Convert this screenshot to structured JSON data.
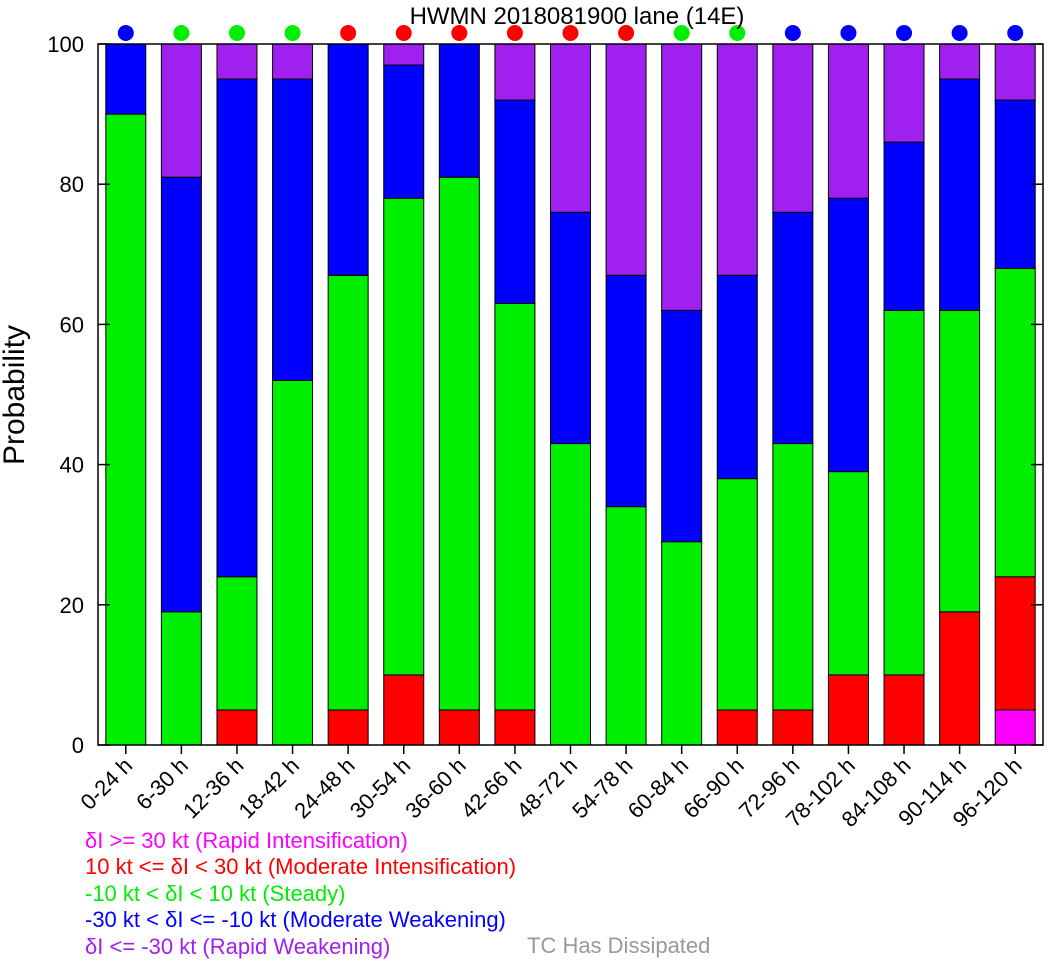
{
  "chart_data": {
    "type": "bar",
    "stacked": true,
    "title": "HWMN 2018081900 lane (14E)",
    "ylabel": "Probability",
    "xlabel": "",
    "ylim": [
      0,
      100
    ],
    "yticks": [
      "0",
      "20",
      "40",
      "60",
      "80",
      "100"
    ],
    "categories": [
      "0-24 h",
      "6-30 h",
      "12-36 h",
      "18-42 h",
      "24-48 h",
      "30-54 h",
      "36-60 h",
      "42-66 h",
      "48-72 h",
      "54-78 h",
      "60-84 h",
      "66-90 h",
      "72-96 h",
      "78-102 h",
      "84-108 h",
      "90-114 h",
      "96-120 h"
    ],
    "series": [
      {
        "name": "δI >= 30 kt (Rapid Intensification)",
        "color": "#ff00ff",
        "values": [
          0,
          0,
          0,
          0,
          0,
          0,
          0,
          0,
          0,
          0,
          0,
          0,
          0,
          0,
          0,
          0,
          5
        ]
      },
      {
        "name": "10 kt <= δI < 30 kt (Moderate Intensification)",
        "color": "#ff0000",
        "values": [
          0,
          0,
          5,
          0,
          5,
          10,
          5,
          5,
          0,
          0,
          0,
          5,
          5,
          10,
          10,
          19,
          19
        ]
      },
      {
        "name": "-10 kt < δI < 10 kt (Steady)",
        "color": "#00ee00",
        "values": [
          90,
          19,
          19,
          52,
          62,
          68,
          76,
          58,
          43,
          34,
          29,
          33,
          38,
          29,
          52,
          43,
          44
        ]
      },
      {
        "name": "-30 kt < δI <= -10 kt (Moderate Weakening)",
        "color": "#0000ff",
        "values": [
          10,
          62,
          71,
          43,
          33,
          19,
          19,
          29,
          33,
          33,
          33,
          29,
          33,
          39,
          24,
          33,
          24
        ]
      },
      {
        "name": "δI <= -30 kt (Rapid Weakening)",
        "color": "#a020f0",
        "values": [
          0,
          19,
          5,
          5,
          0,
          3,
          0,
          8,
          24,
          33,
          38,
          33,
          24,
          22,
          14,
          5,
          8
        ]
      }
    ],
    "top_markers": [
      "blue",
      "green",
      "green",
      "green",
      "red",
      "red",
      "red",
      "red",
      "red",
      "red",
      "green",
      "green",
      "blue",
      "blue",
      "blue",
      "blue",
      "blue"
    ],
    "marker_colors": {
      "blue": "#0000ff",
      "green": "#00ee00",
      "red": "#ff0000"
    },
    "dissipated_label": "TC Has Dissipated",
    "dissipated_color": "#999999"
  }
}
